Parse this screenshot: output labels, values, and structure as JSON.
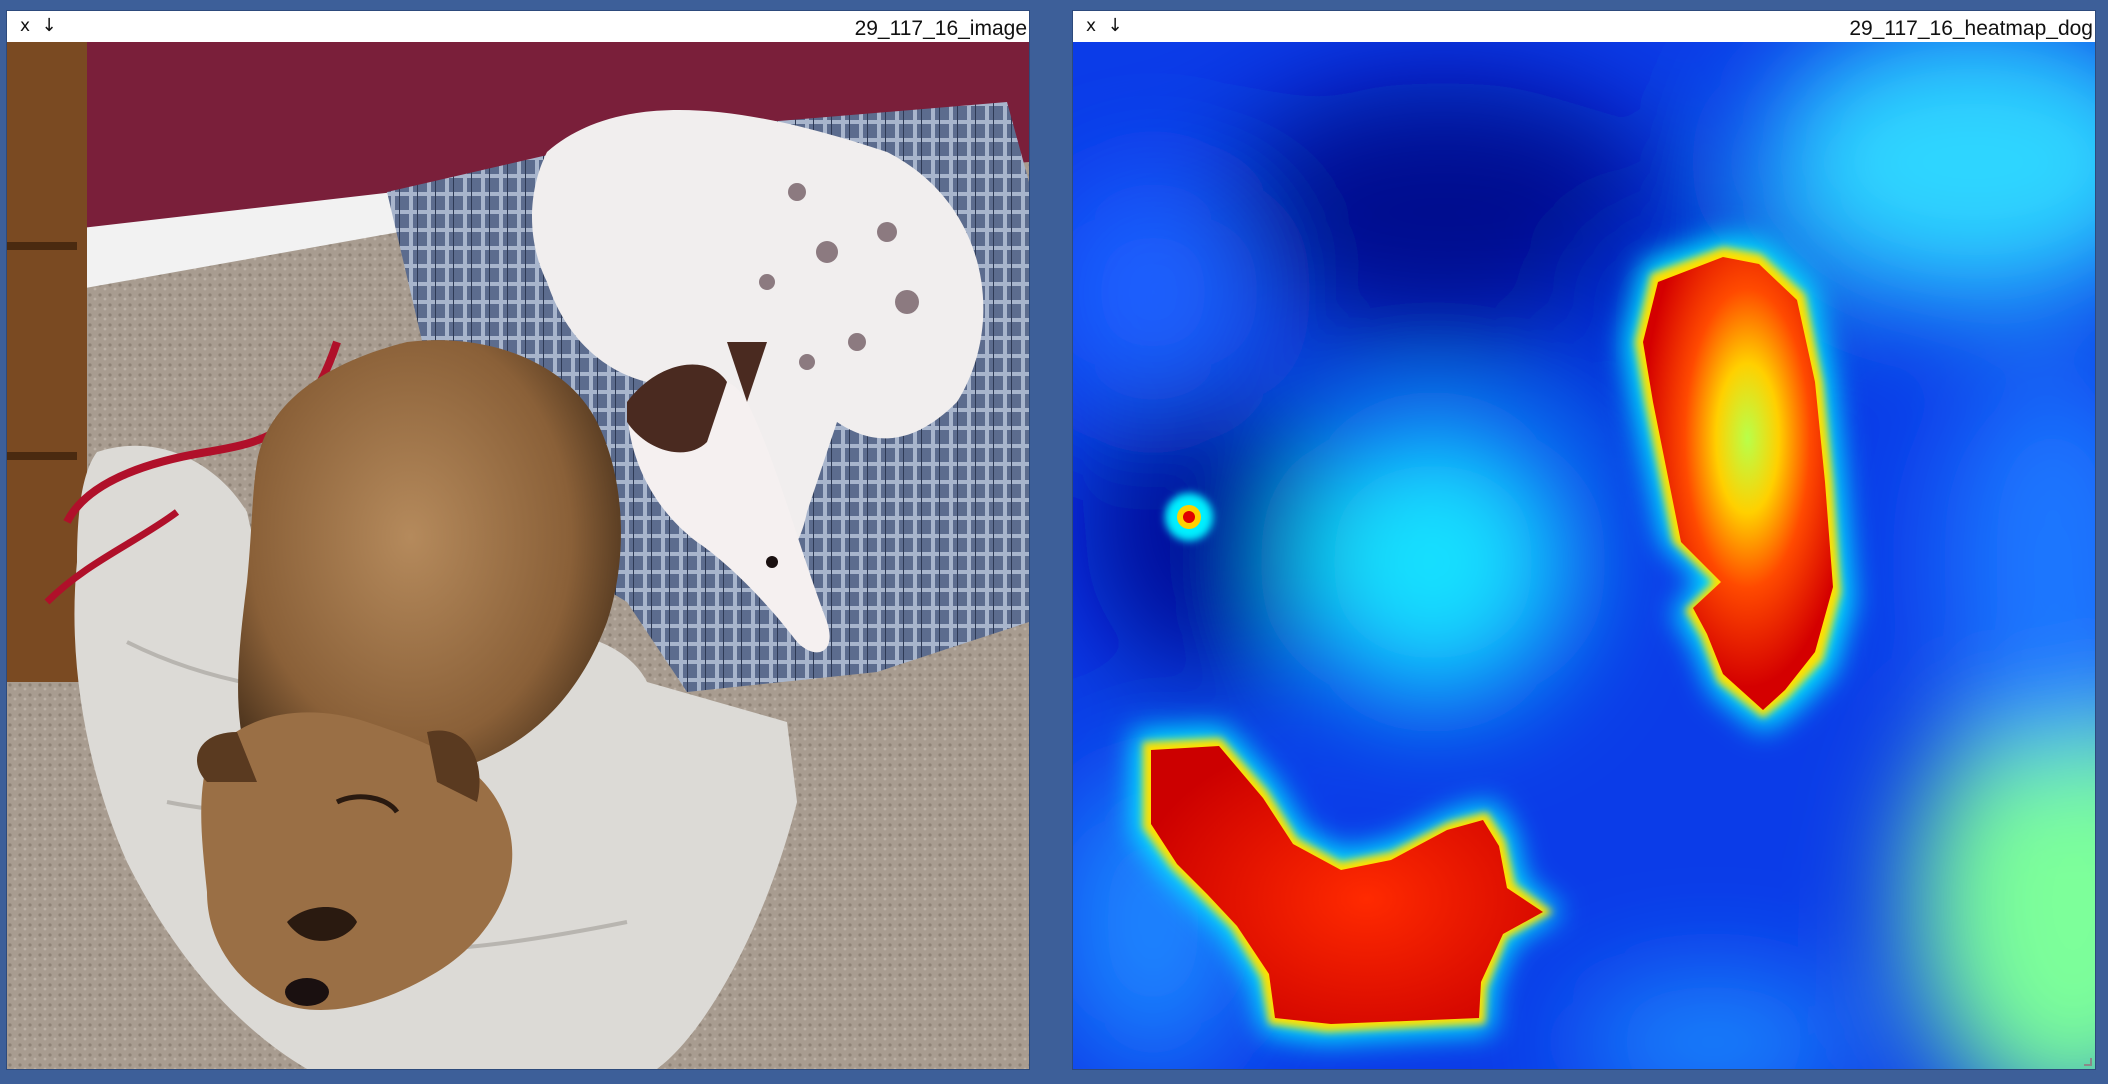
{
  "windows": [
    {
      "title": "29_117_16_image",
      "close_label": "x",
      "download_label": "↓"
    },
    {
      "title": "29_117_16_heatmap_dog",
      "close_label": "x",
      "download_label": "↓"
    }
  ],
  "colors": {
    "desktop_background": "#3d5f99",
    "heatmap_low": "#00008f",
    "heatmap_mid": "#00e5ff",
    "heatmap_high": "#d40000"
  }
}
